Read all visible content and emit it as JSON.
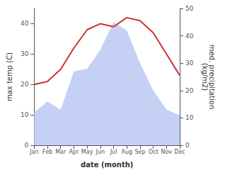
{
  "chart_data": {
    "type": "line",
    "categories": [
      "Jan",
      "Feb",
      "Mar",
      "Apr",
      "May",
      "Jun",
      "Jul",
      "Aug",
      "Sep",
      "Oct",
      "Nov",
      "Dec"
    ],
    "xlabel": "date (month)",
    "ylabel": "max temp (C)",
    "y2label": "med. precipitation\n(kg/m2)",
    "series": [
      {
        "type": "area",
        "axis": "y2",
        "color": "#c5d0f5",
        "values": [
          12,
          16,
          13,
          27,
          28,
          35,
          45,
          42,
          30,
          20,
          13,
          11
        ]
      },
      {
        "type": "line",
        "color": "#cc3333",
        "values": [
          20,
          21,
          25,
          32,
          38,
          40,
          39,
          42,
          41,
          37,
          30,
          23
        ]
      }
    ],
    "ylim": [
      0,
      45
    ],
    "yticks": [
      0,
      10,
      20,
      30,
      40
    ],
    "y2lim": [
      0,
      50
    ],
    "y2ticks": [
      0,
      10,
      20,
      30,
      40,
      50
    ],
    "grid": false
  }
}
